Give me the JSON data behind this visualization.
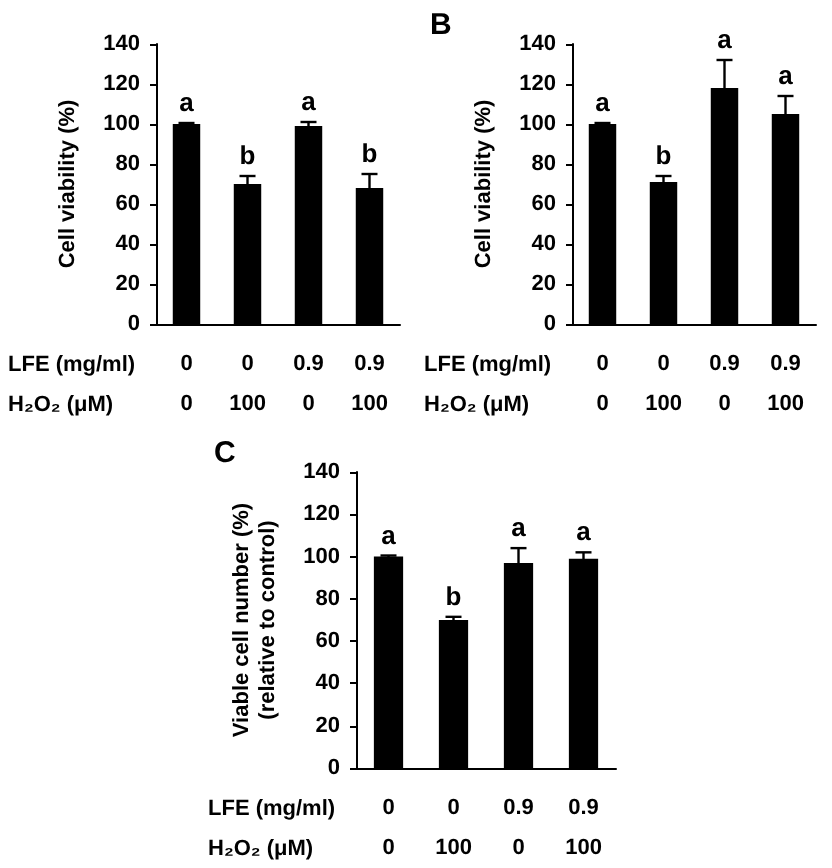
{
  "chart_data": [
    {
      "type": "bar",
      "categories": [
        "0\n0",
        "0\n100",
        "0.9\n0",
        "0.9\n100"
      ],
      "ylabel": "Cell viability (%)",
      "annotations": [
        "LFE (mg/ml)",
        "H₂O₂ (μM)"
      ],
      "color": "#000000",
      "values": [
        100,
        70,
        99,
        68
      ],
      "errors": [
        0.5,
        4,
        2,
        7
      ],
      "value_labels": [
        "a",
        "b",
        "a",
        "b"
      ],
      "ylim": [
        0,
        140
      ],
      "yticks": [
        0,
        20,
        40,
        60,
        80,
        100,
        120,
        140
      ]
    },
    {
      "type": "bar",
      "title": "B",
      "categories": [
        "0\n0",
        "0\n100",
        "0.9\n0",
        "0.9\n100"
      ],
      "ylabel": "Cell viability (%)",
      "annotations": [
        "LFE (mg/ml)",
        "H₂O₂ (μM)"
      ],
      "color": "#000000",
      "values": [
        100,
        71,
        118,
        105
      ],
      "errors": [
        0.5,
        3,
        14,
        9
      ],
      "value_labels": [
        "a",
        "b",
        "a",
        "a"
      ],
      "ylim": [
        0,
        140
      ],
      "yticks": [
        0,
        20,
        40,
        60,
        80,
        100,
        120,
        140
      ]
    },
    {
      "type": "bar",
      "title": "C",
      "categories": [
        "0\n0",
        "0\n100",
        "0.9\n0",
        "0.9\n100"
      ],
      "ylabel": "Viable cell number (%)\n(relative to control)",
      "annotations": [
        "LFE (mg/ml)",
        "H₂O₂ (μM)"
      ],
      "color": "#000000",
      "values": [
        100,
        70,
        97,
        99
      ],
      "errors": [
        0.5,
        1.5,
        7,
        3
      ],
      "value_labels": [
        "a",
        "b",
        "a",
        "a"
      ],
      "ylim": [
        0,
        140
      ],
      "yticks": [
        0,
        20,
        40,
        60,
        80,
        100,
        120,
        140
      ]
    }
  ]
}
